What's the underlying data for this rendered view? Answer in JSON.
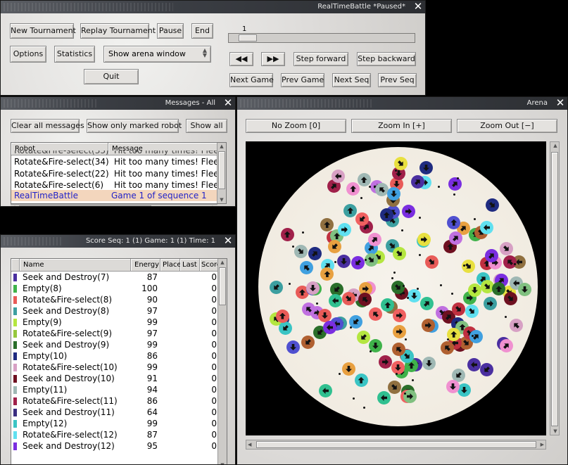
{
  "control": {
    "title": "RealTimeBattle  *Paused*",
    "buttons": {
      "new_tournament": "New Tournament",
      "replay_tournament": "Replay Tournament",
      "pause": "Pause",
      "end": "End",
      "options": "Options",
      "statistics": "Statistics",
      "quit": "Quit",
      "step_forward": "Step forward",
      "step_backward": "Step backward",
      "next_game": "Next Game",
      "prev_game": "Prev Game",
      "next_seq": "Next Seq",
      "prev_seq": "Prev Seq",
      "rewind": "◀◀",
      "fast_forward": "▶▶"
    },
    "arena_select": "Show arena window",
    "replay_position": "1"
  },
  "messages": {
    "title": "Messages  -   All",
    "buttons": {
      "clear": "Clear all messages",
      "marked": "Show only marked robot",
      "all": "Show all"
    },
    "columns": [
      "Robot",
      "Message"
    ],
    "rows": [
      {
        "robot": "Rotate&Fire-select(34)",
        "message": "Hit too many times! Flee!"
      },
      {
        "robot": "Rotate&Fire-select(22)",
        "message": "Hit too many times! Flee!"
      },
      {
        "robot": "Rotate&Fire-select(6)",
        "message": "Hit too many times! Flee!"
      },
      {
        "robot": "RealTimeBattle",
        "message": "Game 1 of sequence 1"
      }
    ]
  },
  "score": {
    "title": "Score   Seq: 1 (1)  Game: 1 (1)  Time: 1",
    "columns": [
      "Name",
      "Energy",
      "Place",
      "Last",
      "Score"
    ],
    "rows": [
      {
        "color": "#4a2fa0",
        "name": "Seek and Destroy(7)",
        "energy": "87",
        "place": "",
        "last": "",
        "score": "0"
      },
      {
        "color": "#3fb24a",
        "name": "Empty(8)",
        "energy": "100",
        "place": "",
        "last": "",
        "score": "0"
      },
      {
        "color": "#e85b58",
        "name": "Rotate&Fire-select(8)",
        "energy": "90",
        "place": "",
        "last": "",
        "score": "0"
      },
      {
        "color": "#3c9fa0",
        "name": "Seek and Destroy(8)",
        "energy": "97",
        "place": "",
        "last": "",
        "score": "0"
      },
      {
        "color": "#b4e640",
        "name": "Empty(9)",
        "energy": "99",
        "place": "",
        "last": "",
        "score": "0"
      },
      {
        "color": "#96c83c",
        "name": "Rotate&Fire-select(9)",
        "energy": "97",
        "place": "",
        "last": "",
        "score": "0"
      },
      {
        "color": "#2a6e2a",
        "name": "Seek and Destroy(9)",
        "energy": "99",
        "place": "",
        "last": "",
        "score": "0"
      },
      {
        "color": "#1f2b80",
        "name": "Empty(10)",
        "energy": "86",
        "place": "",
        "last": "",
        "score": "0"
      },
      {
        "color": "#d7a0c4",
        "name": "Rotate&Fire-select(10)",
        "energy": "99",
        "place": "",
        "last": "",
        "score": "0"
      },
      {
        "color": "#6e1020",
        "name": "Seek and Destroy(10)",
        "energy": "91",
        "place": "",
        "last": "",
        "score": "0"
      },
      {
        "color": "#9fb8b4",
        "name": "Empty(11)",
        "energy": "94",
        "place": "",
        "last": "",
        "score": "0"
      },
      {
        "color": "#a0204a",
        "name": "Rotate&Fire-select(11)",
        "energy": "86",
        "place": "",
        "last": "",
        "score": "0"
      },
      {
        "color": "#3a2e80",
        "name": "Seek and Destroy(11)",
        "energy": "64",
        "place": "",
        "last": "",
        "score": "0"
      },
      {
        "color": "#3ac4c4",
        "name": "Empty(12)",
        "energy": "99",
        "place": "",
        "last": "",
        "score": "0"
      },
      {
        "color": "#60e0f0",
        "name": "Rotate&Fire-select(12)",
        "energy": "87",
        "place": "",
        "last": "",
        "score": "0"
      },
      {
        "color": "#7a2ee0",
        "name": "Seek and Destroy(12)",
        "energy": "95",
        "place": "",
        "last": "",
        "score": "0"
      }
    ]
  },
  "arena": {
    "title": "Arena",
    "buttons": {
      "no_zoom": "No Zoom [0]",
      "zoom_in": "Zoom In [+]",
      "zoom_out": "Zoom Out [−]"
    },
    "robot_colors": [
      "#e85b58",
      "#3fb24a",
      "#4a2fa0",
      "#3c9fa0",
      "#b4e640",
      "#2a6e2a",
      "#1f2b80",
      "#d7a0c4",
      "#6e1020",
      "#9fb8b4",
      "#a0204a",
      "#3ac4c4",
      "#60e0f0",
      "#7a2ee0",
      "#f090d0",
      "#e8a040",
      "#c03040",
      "#40a0e0",
      "#80c080",
      "#b06030",
      "#e8e040",
      "#5050d0",
      "#c070e0",
      "#f06060",
      "#30c090",
      "#907040"
    ]
  }
}
